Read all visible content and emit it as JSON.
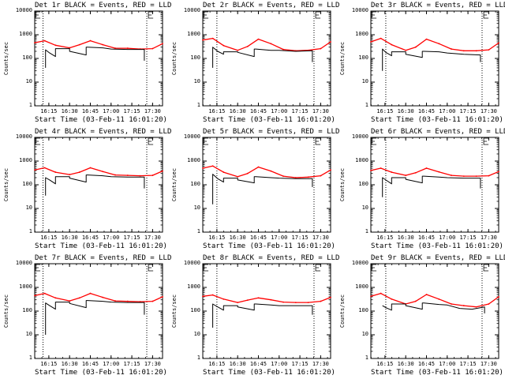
{
  "colors": {
    "events": "#000000",
    "lld": "#ff0000",
    "axes": "#000000"
  },
  "chart_data": [
    {
      "type": "line",
      "title": "Det 1r BLACK = Events, RED = LLD",
      "xlabel": "Start Time (03-Feb-11 16:01:20)",
      "ylabel": "Counts/sec",
      "yscale": "log",
      "ylim": [
        1,
        10000
      ],
      "yticks": [
        "10000",
        "1000",
        "100",
        "10",
        "1"
      ],
      "xlim": [
        16.08,
        17.62
      ],
      "xticks": [
        "16:15",
        "16:30",
        "16:45",
        "17:00",
        "17:15",
        "17:30"
      ],
      "xtick_values": [
        16.25,
        16.5,
        16.75,
        17.0,
        17.25,
        17.5
      ],
      "markers": [
        16.18,
        17.43
      ],
      "series": [
        {
          "name": "LLD",
          "color": "#ff0000",
          "x": [
            16.08,
            16.2,
            16.33,
            16.5,
            16.62,
            16.75,
            16.9,
            17.05,
            17.2,
            17.35,
            17.5,
            17.62
          ],
          "y": [
            460,
            560,
            360,
            280,
            380,
            560,
            380,
            270,
            270,
            250,
            260,
            420
          ]
        },
        {
          "name": "Events",
          "color": "#000000",
          "x": [
            16.21,
            16.21,
            16.26,
            16.33,
            16.33,
            16.5,
            16.5,
            16.7,
            16.7,
            16.72,
            16.9,
            17.0,
            17.2,
            17.4,
            17.4
          ],
          "y": [
            40,
            230,
            170,
            120,
            260,
            260,
            200,
            140,
            300,
            300,
            280,
            250,
            240,
            240,
            80
          ]
        }
      ]
    },
    {
      "type": "line",
      "title": "Det 2r BLACK = Events, RED = LLD",
      "xlabel": "Start Time (03-Feb-11 16:01:20)",
      "ylabel": "Counts/sec",
      "yscale": "log",
      "ylim": [
        1,
        10000
      ],
      "yticks": [
        "10000",
        "1000",
        "100",
        "10",
        "1"
      ],
      "xlim": [
        16.08,
        17.62
      ],
      "xticks": [
        "16:15",
        "16:30",
        "16:45",
        "17:00",
        "17:15",
        "17:30"
      ],
      "xtick_values": [
        16.25,
        16.5,
        16.75,
        17.0,
        17.25,
        17.5
      ],
      "markers": [
        16.25,
        17.42
      ],
      "series": [
        {
          "name": "LLD",
          "color": "#ff0000",
          "x": [
            16.08,
            16.2,
            16.33,
            16.5,
            16.62,
            16.75,
            16.9,
            17.05,
            17.2,
            17.35,
            17.5,
            17.62
          ],
          "y": [
            600,
            700,
            350,
            220,
            320,
            650,
            420,
            240,
            210,
            220,
            260,
            500
          ]
        },
        {
          "name": "Events",
          "color": "#000000",
          "x": [
            16.2,
            16.2,
            16.26,
            16.33,
            16.33,
            16.5,
            16.5,
            16.7,
            16.7,
            16.72,
            16.9,
            17.0,
            17.2,
            17.4,
            17.4
          ],
          "y": [
            40,
            300,
            200,
            150,
            190,
            190,
            180,
            120,
            250,
            250,
            220,
            220,
            200,
            210,
            70
          ]
        }
      ]
    },
    {
      "type": "line",
      "title": "Det 3r BLACK = Events, RED = LLD",
      "xlabel": "Start Time (03-Feb-11 16:01:20)",
      "ylabel": "Counts/sec",
      "yscale": "log",
      "ylim": [
        1,
        10000
      ],
      "yticks": [
        "10000",
        "1000",
        "100",
        "10",
        "1"
      ],
      "xlim": [
        16.08,
        17.62
      ],
      "xticks": [
        "16:15",
        "16:30",
        "16:45",
        "17:00",
        "17:15",
        "17:30"
      ],
      "xtick_values": [
        16.25,
        16.5,
        16.75,
        17.0,
        17.25,
        17.5
      ],
      "markers": [
        16.26,
        17.42
      ],
      "series": [
        {
          "name": "LLD",
          "color": "#ff0000",
          "x": [
            16.08,
            16.2,
            16.33,
            16.5,
            16.62,
            16.75,
            16.9,
            17.05,
            17.2,
            17.35,
            17.5,
            17.62
          ],
          "y": [
            500,
            700,
            380,
            220,
            300,
            650,
            420,
            250,
            210,
            210,
            230,
            450
          ]
        },
        {
          "name": "Events",
          "color": "#000000",
          "x": [
            16.22,
            16.22,
            16.26,
            16.33,
            16.33,
            16.5,
            16.5,
            16.7,
            16.7,
            16.72,
            16.9,
            17.0,
            17.2,
            17.4,
            17.4
          ],
          "y": [
            30,
            250,
            180,
            130,
            190,
            190,
            150,
            110,
            200,
            200,
            190,
            170,
            150,
            140,
            70
          ]
        }
      ]
    },
    {
      "type": "line",
      "title": "Det 4r BLACK = Events, RED = LLD",
      "xlabel": "Start Time (03-Feb-11 16:01:20)",
      "ylabel": "Counts/sec",
      "yscale": "log",
      "ylim": [
        1,
        10000
      ],
      "yticks": [
        "10000",
        "1000",
        "100",
        "10",
        "1"
      ],
      "xlim": [
        16.08,
        17.62
      ],
      "xticks": [
        "16:15",
        "16:30",
        "16:45",
        "17:00",
        "17:15",
        "17:30"
      ],
      "xtick_values": [
        16.25,
        16.5,
        16.75,
        17.0,
        17.25,
        17.5
      ],
      "markers": [
        16.18,
        17.43
      ],
      "series": [
        {
          "name": "LLD",
          "color": "#ff0000",
          "x": [
            16.08,
            16.2,
            16.33,
            16.5,
            16.62,
            16.75,
            16.9,
            17.05,
            17.2,
            17.35,
            17.5,
            17.62
          ],
          "y": [
            420,
            520,
            340,
            270,
            340,
            520,
            360,
            260,
            250,
            240,
            250,
            380
          ]
        },
        {
          "name": "Events",
          "color": "#000000",
          "x": [
            16.21,
            16.21,
            16.26,
            16.33,
            16.33,
            16.5,
            16.5,
            16.7,
            16.7,
            16.72,
            16.9,
            17.0,
            17.2,
            17.4,
            17.4
          ],
          "y": [
            35,
            200,
            160,
            110,
            220,
            220,
            190,
            130,
            260,
            260,
            240,
            220,
            210,
            210,
            70
          ]
        }
      ]
    },
    {
      "type": "line",
      "title": "Det 5r BLACK = Events, RED = LLD",
      "xlabel": "Start Time (03-Feb-11 16:01:20)",
      "ylabel": "Counts/sec",
      "yscale": "log",
      "ylim": [
        1,
        10000
      ],
      "yticks": [
        "10000",
        "1000",
        "100",
        "10",
        "1"
      ],
      "xlim": [
        16.08,
        17.62
      ],
      "xticks": [
        "16:15",
        "16:30",
        "16:45",
        "17:00",
        "17:15",
        "17:30"
      ],
      "xtick_values": [
        16.25,
        16.5,
        16.75,
        17.0,
        17.25,
        17.5
      ],
      "markers": [
        16.25,
        17.42
      ],
      "series": [
        {
          "name": "LLD",
          "color": "#ff0000",
          "x": [
            16.08,
            16.2,
            16.33,
            16.5,
            16.62,
            16.75,
            16.9,
            17.05,
            17.2,
            17.35,
            17.5,
            17.62
          ],
          "y": [
            500,
            620,
            340,
            220,
            300,
            560,
            380,
            230,
            200,
            210,
            240,
            420
          ]
        },
        {
          "name": "Events",
          "color": "#000000",
          "x": [
            16.2,
            16.2,
            16.26,
            16.33,
            16.33,
            16.5,
            16.5,
            16.7,
            16.7,
            16.72,
            16.9,
            17.0,
            17.2,
            17.4,
            17.4
          ],
          "y": [
            15,
            280,
            180,
            130,
            190,
            190,
            160,
            120,
            220,
            220,
            200,
            190,
            180,
            180,
            80
          ]
        }
      ]
    },
    {
      "type": "line",
      "title": "Det 6r BLACK = Events, RED = LLD",
      "xlabel": "Start Time (03-Feb-11 16:01:20)",
      "ylabel": "Counts/sec",
      "yscale": "log",
      "ylim": [
        1,
        10000
      ],
      "yticks": [
        "10000",
        "1000",
        "100",
        "10",
        "1"
      ],
      "xlim": [
        16.08,
        17.62
      ],
      "xticks": [
        "16:15",
        "16:30",
        "16:45",
        "17:00",
        "17:15",
        "17:30"
      ],
      "xtick_values": [
        16.25,
        16.5,
        16.75,
        17.0,
        17.25,
        17.5
      ],
      "markers": [
        16.26,
        17.42
      ],
      "series": [
        {
          "name": "LLD",
          "color": "#ff0000",
          "x": [
            16.08,
            16.2,
            16.33,
            16.5,
            16.62,
            16.75,
            16.9,
            17.05,
            17.2,
            17.35,
            17.5,
            17.62
          ],
          "y": [
            400,
            500,
            340,
            250,
            320,
            500,
            350,
            250,
            230,
            230,
            240,
            360
          ]
        },
        {
          "name": "Events",
          "color": "#000000",
          "x": [
            16.22,
            16.22,
            16.26,
            16.33,
            16.33,
            16.5,
            16.5,
            16.7,
            16.7,
            16.72,
            16.9,
            17.0,
            17.2,
            17.4,
            17.4
          ],
          "y": [
            30,
            200,
            160,
            110,
            200,
            200,
            170,
            120,
            230,
            230,
            210,
            200,
            190,
            190,
            70
          ]
        }
      ]
    },
    {
      "type": "line",
      "title": "Det 7r BLACK = Events, RED = LLD",
      "xlabel": "Start Time (03-Feb-11 16:01:20)",
      "ylabel": "Counts/sec",
      "yscale": "log",
      "ylim": [
        1,
        10000
      ],
      "yticks": [
        "10000",
        "1000",
        "100",
        "10",
        "1"
      ],
      "xlim": [
        16.08,
        17.62
      ],
      "xticks": [
        "16:15",
        "16:30",
        "16:45",
        "17:00",
        "17:15",
        "17:30"
      ],
      "xtick_values": [
        16.25,
        16.5,
        16.75,
        17.0,
        17.25,
        17.5
      ],
      "markers": [
        16.18,
        17.43
      ],
      "series": [
        {
          "name": "LLD",
          "color": "#ff0000",
          "x": [
            16.08,
            16.2,
            16.33,
            16.5,
            16.62,
            16.75,
            16.9,
            17.05,
            17.2,
            17.35,
            17.5,
            17.62
          ],
          "y": [
            450,
            560,
            360,
            270,
            360,
            560,
            380,
            270,
            260,
            250,
            260,
            400
          ]
        },
        {
          "name": "Events",
          "color": "#000000",
          "x": [
            16.21,
            16.21,
            16.26,
            16.33,
            16.33,
            16.5,
            16.5,
            16.7,
            16.7,
            16.72,
            16.9,
            17.0,
            17.2,
            17.4,
            17.4
          ],
          "y": [
            10,
            220,
            170,
            120,
            240,
            240,
            210,
            140,
            280,
            280,
            260,
            240,
            230,
            230,
            70
          ]
        }
      ]
    },
    {
      "type": "line",
      "title": "Det 8r BLACK = Events, RED = LLD",
      "xlabel": "Start Time (03-Feb-11 16:01:20)",
      "ylabel": "Counts/sec",
      "yscale": "log",
      "ylim": [
        1,
        10000
      ],
      "yticks": [
        "10000",
        "1000",
        "100",
        "10",
        "1"
      ],
      "xlim": [
        16.08,
        17.62
      ],
      "xticks": [
        "16:15",
        "16:30",
        "16:45",
        "17:00",
        "17:15",
        "17:30"
      ],
      "xtick_values": [
        16.25,
        16.5,
        16.75,
        17.0,
        17.25,
        17.5
      ],
      "markers": [
        16.25,
        17.42
      ],
      "series": [
        {
          "name": "LLD",
          "color": "#ff0000",
          "x": [
            16.08,
            16.2,
            16.33,
            16.5,
            16.62,
            16.75,
            16.9,
            17.05,
            17.2,
            17.35,
            17.5,
            17.62
          ],
          "y": [
            420,
            480,
            320,
            230,
            290,
            360,
            300,
            240,
            230,
            230,
            260,
            380
          ]
        },
        {
          "name": "Events",
          "color": "#000000",
          "x": [
            16.2,
            16.2,
            16.26,
            16.33,
            16.33,
            16.5,
            16.5,
            16.7,
            16.7,
            16.72,
            16.9,
            17.0,
            17.2,
            17.4,
            17.4
          ],
          "y": [
            20,
            200,
            150,
            110,
            170,
            170,
            150,
            110,
            200,
            200,
            180,
            170,
            170,
            170,
            70
          ]
        }
      ]
    },
    {
      "type": "line",
      "title": "Det 9r BLACK = Events, RED = LLD",
      "xlabel": "Start Time (03-Feb-11 16:01:20)",
      "ylabel": "Counts/sec",
      "yscale": "log",
      "ylim": [
        1,
        10000
      ],
      "yticks": [
        "10000",
        "1000",
        "100",
        "10",
        "1"
      ],
      "xlim": [
        16.08,
        17.62
      ],
      "xticks": [
        "16:15",
        "16:30",
        "16:45",
        "17:00",
        "17:15",
        "17:30"
      ],
      "xtick_values": [
        16.25,
        16.5,
        16.75,
        17.0,
        17.25,
        17.5
      ],
      "markers": [
        16.26,
        17.42
      ],
      "series": [
        {
          "name": "LLD",
          "color": "#ff0000",
          "x": [
            16.08,
            16.2,
            16.33,
            16.5,
            16.62,
            16.75,
            16.9,
            17.05,
            17.2,
            17.35,
            17.5,
            17.62
          ],
          "y": [
            420,
            560,
            320,
            200,
            260,
            500,
            320,
            200,
            170,
            150,
            200,
            400
          ]
        },
        {
          "name": "Events",
          "color": "#000000",
          "x": [
            16.22,
            16.26,
            16.33,
            16.33,
            16.5,
            16.5,
            16.7,
            16.7,
            16.72,
            16.9,
            17.0,
            17.15,
            17.3,
            17.45,
            17.45
          ],
          "y": [
            170,
            140,
            110,
            200,
            200,
            170,
            120,
            220,
            220,
            190,
            180,
            130,
            120,
            150,
            80
          ]
        }
      ]
    }
  ]
}
